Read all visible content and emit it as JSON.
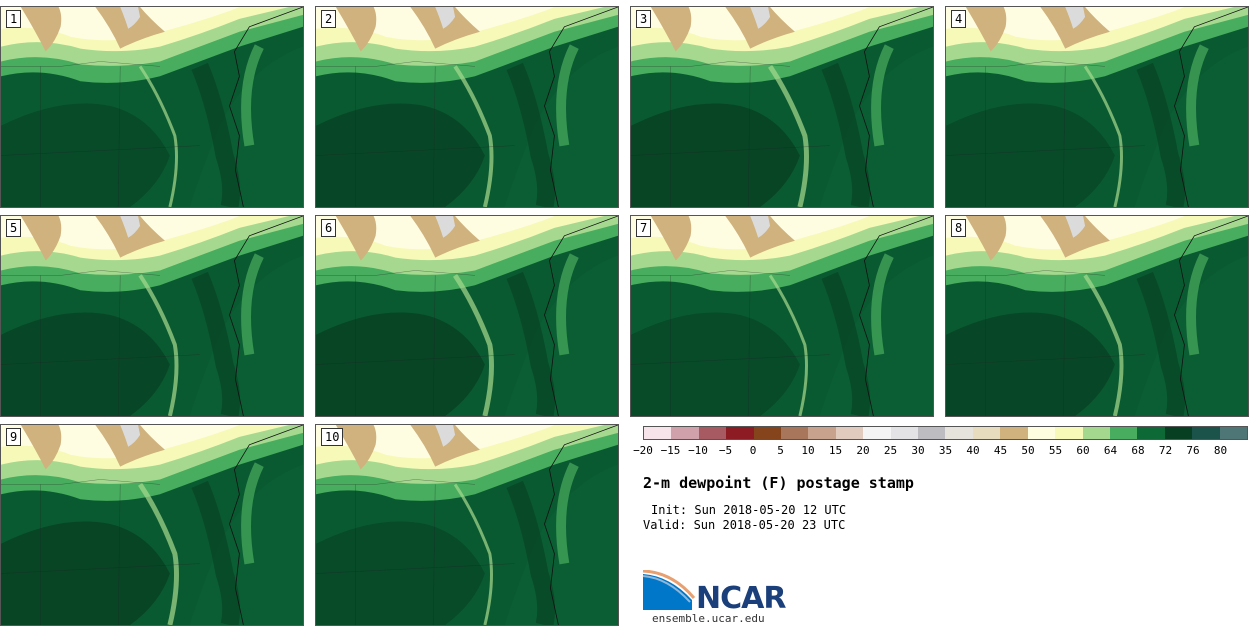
{
  "panels": [
    {
      "label": "1"
    },
    {
      "label": "2"
    },
    {
      "label": "3"
    },
    {
      "label": "4"
    },
    {
      "label": "5"
    },
    {
      "label": "6"
    },
    {
      "label": "7"
    },
    {
      "label": "8"
    },
    {
      "label": "9"
    },
    {
      "label": "10"
    }
  ],
  "colorbar": {
    "colors": [
      "#f6e4ea",
      "#d1a1ab",
      "#a85a63",
      "#8c1b24",
      "#86441c",
      "#a8765a",
      "#c9a28e",
      "#e1cbbf",
      "#f4f4f4",
      "#e3e3e6",
      "#bdbcc0",
      "#e6e3dc",
      "#e7dcbd",
      "#cfb27d",
      "#fffde0",
      "#f6f9b8",
      "#a5d88f",
      "#49ad5f",
      "#0d6a36",
      "#063f22",
      "#1b524a",
      "#4f7677"
    ],
    "tick_labels": [
      "−20",
      "−15",
      "−10",
      "−5",
      "0",
      "5",
      "10",
      "15",
      "20",
      "25",
      "30",
      "35",
      "40",
      "45",
      "50",
      "55",
      "60",
      "64",
      "68",
      "72",
      "76",
      "80"
    ]
  },
  "info": {
    "title": "2-m dewpoint (F) postage stamp",
    "init": "Init: Sun 2018-05-20 12 UTC",
    "valid": "Valid: Sun 2018-05-20 23 UTC"
  },
  "logo": {
    "text": "NCAR",
    "site": "ensemble.ucar.edu"
  }
}
